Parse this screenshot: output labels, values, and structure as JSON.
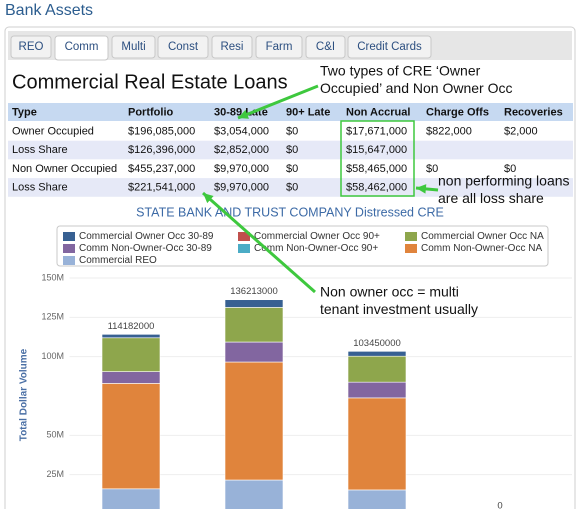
{
  "header": {
    "title": "Bank Assets"
  },
  "tabs": [
    "REO",
    "Comm",
    "Multi",
    "Const",
    "Resi",
    "Farm",
    "C&I",
    "Credit Cards"
  ],
  "active_tab": 1,
  "heading": "Commercial Real Estate Loans",
  "table": {
    "columns": [
      "Type",
      "Portfolio",
      "30-89 Late",
      "90+ Late",
      "Non Accrual",
      "Charge Offs",
      "Recoveries"
    ],
    "rows": [
      [
        "Owner Occupied",
        "$196,085,000",
        "$3,054,000",
        "$0",
        "$17,671,000",
        "$822,000",
        "$2,000"
      ],
      [
        "Loss Share",
        "$126,396,000",
        "$2,852,000",
        "$0",
        "$15,647,000",
        null,
        null
      ],
      [
        "Non Owner Occupied",
        "$455,237,000",
        "$9,970,000",
        "$0",
        "$58,465,000",
        "$0",
        "$0"
      ],
      [
        "Loss Share",
        "$221,541,000",
        "$9,970,000",
        "$0",
        "$58,462,000",
        null,
        null
      ]
    ]
  },
  "annotations": [
    [
      "Two types of CRE ‘Owner",
      "Occupied’ and Non Owner Occ"
    ],
    [
      "non performing loans",
      "are all loss share"
    ],
    [
      "Non owner occ = multi",
      "tenant investment usually"
    ]
  ],
  "chart_data": {
    "type": "stacked_bar",
    "title": "STATE BANK AND TRUST COMPANY Distressed CRE",
    "y_label": "Total Dollar Volume",
    "categories": [
      null,
      null,
      null,
      null
    ],
    "series": [
      {
        "name": "Commercial Owner Occ 30-89",
        "color": "#376092",
        "values": [
          2200000,
          4900000,
          3100000,
          0
        ]
      },
      {
        "name": "Commercial Owner Occ 90+",
        "color": "#c0504d",
        "values": [
          0,
          0,
          0,
          0
        ]
      },
      {
        "name": "Commercial Owner Occ NA",
        "color": "#8ea64c",
        "values": [
          21500000,
          22000000,
          16500000,
          0
        ]
      },
      {
        "name": "Comm Non-Owner-Occ 30-89",
        "color": "#8266a0",
        "values": [
          7500000,
          12700000,
          10000000,
          0
        ]
      },
      {
        "name": "Comm Non-Owner-Occ 90+",
        "color": "#4bacc6",
        "values": [
          0,
          0,
          0,
          0
        ]
      },
      {
        "name": "Comm Non-Owner-Occ NA",
        "color": "#e0843c",
        "values": [
          67000000,
          75000000,
          58500000,
          0
        ]
      },
      {
        "name": "Commercial REO",
        "color": "#98b2d8",
        "values": [
          16000000,
          21600000,
          15300000,
          0
        ]
      }
    ],
    "totals": [
      114182000,
      136213000,
      103450000,
      0
    ],
    "ylim": [
      0,
      150000000
    ],
    "yticks": [
      {
        "value": 25000000,
        "label": "25M"
      },
      {
        "value": 50000000,
        "label": "50M"
      },
      {
        "value": 100000000,
        "label": "100M"
      },
      {
        "value": 125000000,
        "label": "125M"
      },
      {
        "value": 150000000,
        "label": "150M"
      }
    ],
    "grid": true
  }
}
